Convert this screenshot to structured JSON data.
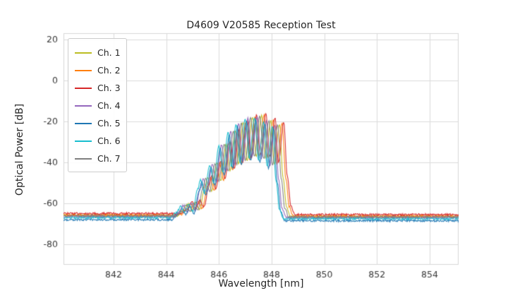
{
  "chart_data": {
    "type": "line",
    "title": "D4609 V20585 Reception Test",
    "xlabel": "Wavelength [nm]",
    "ylabel": "Optical Power [dB]",
    "xlim": [
      840.1,
      855.1
    ],
    "ylim": [
      -90,
      23
    ],
    "xticks": [
      842,
      844,
      846,
      848,
      850,
      852,
      854
    ],
    "yticks": [
      20,
      0,
      -20,
      -40,
      -60,
      -80
    ],
    "grid": true,
    "legend_position": "upper left",
    "noise_floor_db": -66,
    "envelope_keypoints": [
      [
        840.1,
        -66.0
      ],
      [
        844.4,
        -66.0
      ],
      [
        844.65,
        -63.5
      ],
      [
        844.8,
        -60.5
      ],
      [
        844.95,
        -63.5
      ],
      [
        845.1,
        -59.5
      ],
      [
        845.25,
        -63.0
      ],
      [
        845.45,
        -52.0
      ],
      [
        845.55,
        -47.5
      ],
      [
        845.7,
        -54.0
      ],
      [
        845.9,
        -40.5
      ],
      [
        846.05,
        -49.0
      ],
      [
        846.25,
        -31.0
      ],
      [
        846.4,
        -44.0
      ],
      [
        846.6,
        -24.5
      ],
      [
        846.72,
        -41.0
      ],
      [
        846.9,
        -20.5
      ],
      [
        847.05,
        -39.0
      ],
      [
        847.25,
        -18.0
      ],
      [
        847.4,
        -37.0
      ],
      [
        847.6,
        -17.2
      ],
      [
        847.75,
        -38.0
      ],
      [
        847.95,
        -19.5
      ],
      [
        848.08,
        -41.0
      ],
      [
        848.28,
        -21.5
      ],
      [
        848.42,
        -48.0
      ],
      [
        848.55,
        -62.0
      ],
      [
        848.7,
        -66.5
      ],
      [
        855.1,
        -66.5
      ]
    ],
    "noise_db_floor": 0.5,
    "noise_db_peak": 0.3,
    "series": [
      {
        "name": "Ch. 1",
        "color": "#bcbd22",
        "x_shift_nm": 0.02,
        "y_shift_db": 0.0
      },
      {
        "name": "Ch. 2",
        "color": "#ff7f0e",
        "x_shift_nm": 0.12,
        "y_shift_db": 0.3
      },
      {
        "name": "Ch. 3",
        "color": "#d62728",
        "x_shift_nm": 0.18,
        "y_shift_db": 1.0
      },
      {
        "name": "Ch. 4",
        "color": "#9467bd",
        "x_shift_nm": -0.15,
        "y_shift_db": -0.5
      },
      {
        "name": "Ch. 5",
        "color": "#1f77b4",
        "x_shift_nm": -0.2,
        "y_shift_db": -2.0
      },
      {
        "name": "Ch. 6",
        "color": "#17becf",
        "x_shift_nm": -0.25,
        "y_shift_db": -1.0
      },
      {
        "name": "Ch. 7",
        "color": "#7f7f7f",
        "x_shift_nm": -0.05,
        "y_shift_db": -0.2
      }
    ]
  },
  "style": {
    "grid_color": "#dcdcdc",
    "spine_color": "#d8d8d8",
    "tick_label_color": "#3a3a3a"
  }
}
